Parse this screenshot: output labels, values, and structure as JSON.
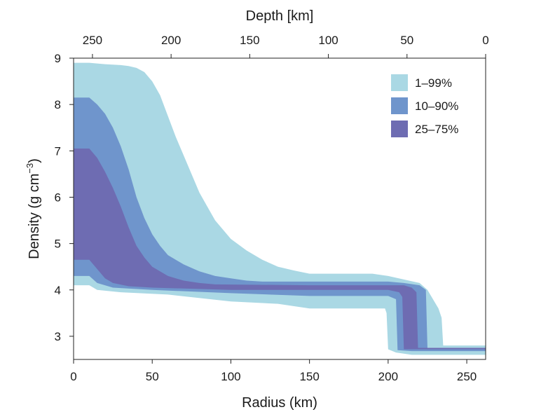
{
  "chart_data": {
    "type": "area",
    "xlabel": "Radius (km)",
    "ylabel_main": "Density (g cm",
    "ylabel_sup": "−3",
    "ylabel_close": ")",
    "top_xlabel": "Depth [km]",
    "xlim": [
      0,
      262
    ],
    "ylim": [
      2.5,
      9
    ],
    "x_ticks": [
      0,
      50,
      100,
      150,
      200,
      250
    ],
    "y_ticks": [
      3,
      4,
      5,
      6,
      7,
      8,
      9
    ],
    "top_ticks": [
      250,
      200,
      150,
      100,
      50,
      0
    ],
    "planet_radius": 262,
    "grid": false,
    "legend_position": "top-right",
    "series": [
      {
        "name": "1–99%",
        "color": "#aad8e4",
        "upper": [
          [
            0,
            8.9
          ],
          [
            10,
            8.9
          ],
          [
            20,
            8.87
          ],
          [
            30,
            8.85
          ],
          [
            35,
            8.83
          ],
          [
            40,
            8.79
          ],
          [
            45,
            8.7
          ],
          [
            50,
            8.5
          ],
          [
            55,
            8.2
          ],
          [
            60,
            7.75
          ],
          [
            65,
            7.3
          ],
          [
            70,
            6.9
          ],
          [
            75,
            6.5
          ],
          [
            80,
            6.1
          ],
          [
            85,
            5.8
          ],
          [
            90,
            5.5
          ],
          [
            100,
            5.1
          ],
          [
            110,
            4.85
          ],
          [
            120,
            4.65
          ],
          [
            130,
            4.5
          ],
          [
            140,
            4.42
          ],
          [
            150,
            4.35
          ],
          [
            190,
            4.35
          ],
          [
            200,
            4.3
          ],
          [
            220,
            4.15
          ],
          [
            225,
            4.0
          ],
          [
            232,
            3.6
          ],
          [
            234,
            3.4
          ],
          [
            235,
            2.8
          ],
          [
            262,
            2.8
          ]
        ],
        "lower": [
          [
            0,
            4.1
          ],
          [
            10,
            4.1
          ],
          [
            15,
            4.0
          ],
          [
            30,
            3.95
          ],
          [
            60,
            3.9
          ],
          [
            100,
            3.75
          ],
          [
            130,
            3.7
          ],
          [
            150,
            3.6
          ],
          [
            198,
            3.6
          ],
          [
            199,
            3.5
          ],
          [
            200,
            2.72
          ],
          [
            205,
            2.65
          ],
          [
            215,
            2.6
          ],
          [
            262,
            2.6
          ]
        ]
      },
      {
        "name": "10–90%",
        "color": "#6f95cc",
        "upper": [
          [
            0,
            8.15
          ],
          [
            10,
            8.15
          ],
          [
            15,
            8.0
          ],
          [
            20,
            7.8
          ],
          [
            25,
            7.5
          ],
          [
            30,
            7.1
          ],
          [
            35,
            6.6
          ],
          [
            40,
            6.0
          ],
          [
            45,
            5.55
          ],
          [
            50,
            5.2
          ],
          [
            55,
            4.95
          ],
          [
            60,
            4.75
          ],
          [
            70,
            4.55
          ],
          [
            80,
            4.4
          ],
          [
            90,
            4.3
          ],
          [
            100,
            4.25
          ],
          [
            110,
            4.2
          ],
          [
            120,
            4.18
          ],
          [
            200,
            4.18
          ],
          [
            210,
            4.15
          ],
          [
            220,
            4.1
          ],
          [
            224,
            4.0
          ],
          [
            225,
            2.75
          ],
          [
            262,
            2.75
          ]
        ],
        "lower": [
          [
            0,
            4.3
          ],
          [
            10,
            4.3
          ],
          [
            15,
            4.15
          ],
          [
            25,
            4.05
          ],
          [
            50,
            4.0
          ],
          [
            100,
            3.93
          ],
          [
            150,
            3.87
          ],
          [
            200,
            3.87
          ],
          [
            205,
            3.8
          ],
          [
            206,
            2.7
          ],
          [
            215,
            2.68
          ],
          [
            262,
            2.68
          ]
        ]
      },
      {
        "name": "25–75%",
        "color": "#6e6cb2",
        "upper": [
          [
            0,
            7.05
          ],
          [
            10,
            7.05
          ],
          [
            15,
            6.85
          ],
          [
            20,
            6.55
          ],
          [
            25,
            6.2
          ],
          [
            30,
            5.8
          ],
          [
            35,
            5.35
          ],
          [
            40,
            4.95
          ],
          [
            45,
            4.7
          ],
          [
            50,
            4.5
          ],
          [
            60,
            4.3
          ],
          [
            70,
            4.2
          ],
          [
            80,
            4.15
          ],
          [
            90,
            4.12
          ],
          [
            150,
            4.1
          ],
          [
            210,
            4.1
          ],
          [
            215,
            4.05
          ],
          [
            218,
            3.95
          ],
          [
            219,
            2.75
          ],
          [
            262,
            2.75
          ]
        ],
        "lower": [
          [
            0,
            4.65
          ],
          [
            10,
            4.65
          ],
          [
            15,
            4.45
          ],
          [
            20,
            4.25
          ],
          [
            25,
            4.15
          ],
          [
            35,
            4.08
          ],
          [
            50,
            4.05
          ],
          [
            100,
            4.0
          ],
          [
            200,
            4.0
          ],
          [
            207,
            3.95
          ],
          [
            209,
            3.85
          ],
          [
            210,
            2.72
          ],
          [
            262,
            2.72
          ]
        ]
      }
    ]
  }
}
